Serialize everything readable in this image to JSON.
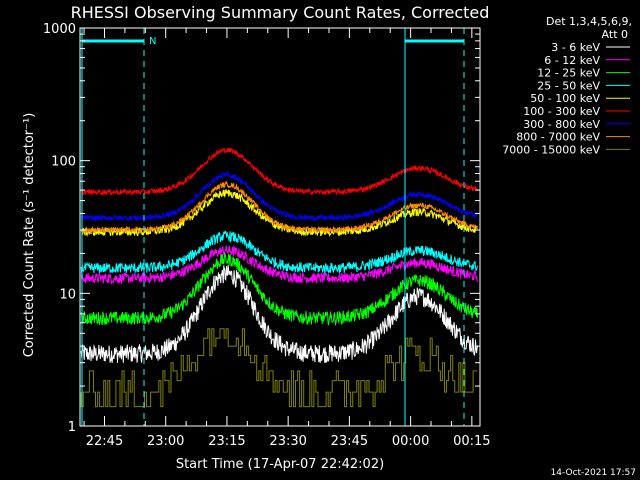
{
  "chart_data": {
    "type": "line",
    "title": "RHESSI Observing Summary Count Rates, Corrected",
    "ylabel": "Corrected Count Rate (s⁻¹ detector⁻¹)",
    "xlabel": "Start Time (17-Apr-07 22:42:02)",
    "yscale": "log",
    "ylim": [
      1,
      1000
    ],
    "xlim_minutes": [
      -3,
      95
    ],
    "x_ticks": [
      {
        "t": 3,
        "label": "22:45"
      },
      {
        "t": 18,
        "label": "23:00"
      },
      {
        "t": 33,
        "label": "23:15"
      },
      {
        "t": 48,
        "label": "23:30"
      },
      {
        "t": 63,
        "label": "23:45"
      },
      {
        "t": 78,
        "label": "00:00"
      },
      {
        "t": 93,
        "label": "00:15"
      }
    ],
    "y_ticks": [
      {
        "v": 1,
        "label": "1"
      },
      {
        "v": 10,
        "label": "10"
      },
      {
        "v": 100,
        "label": "100"
      },
      {
        "v": 1000,
        "label": "1000"
      }
    ],
    "annotations": {
      "detectors": "Det 1,3,4,5,6,9,",
      "attenuator": "Att 0",
      "night_marker": "N",
      "timestamp": "14-Oct-2021 17:57"
    },
    "series": [
      {
        "name": "3 - 6 keV",
        "color": "#ffffff",
        "base": 3.5,
        "peak1": 14,
        "peak2": 9.5,
        "noise": 0.07
      },
      {
        "name": "6 - 12 keV",
        "color": "#ff00ff",
        "base": 13,
        "peak1": 21,
        "peak2": 17,
        "noise": 0.04
      },
      {
        "name": "12 - 25 keV",
        "color": "#00ff00",
        "base": 6.5,
        "peak1": 18,
        "peak2": 12.5,
        "noise": 0.05
      },
      {
        "name": "25 - 50 keV",
        "color": "#00ffff",
        "base": 15.5,
        "peak1": 27,
        "peak2": 21,
        "noise": 0.04
      },
      {
        "name": "50 - 100 keV",
        "color": "#ffff00",
        "base": 29,
        "peak1": 57,
        "peak2": 41,
        "noise": 0.03
      },
      {
        "name": "100 - 300 keV",
        "color": "#ff0000",
        "base": 58,
        "peak1": 120,
        "peak2": 88,
        "noise": 0.02
      },
      {
        "name": "300 - 800 keV",
        "color": "#0000ff",
        "base": 37,
        "peak1": 78,
        "peak2": 56,
        "noise": 0.02
      },
      {
        "name": "800 - 7000 keV",
        "color": "#ff8c00",
        "base": 30,
        "peak1": 66,
        "peak2": 46,
        "noise": 0.02
      },
      {
        "name": "7000 - 15000 keV",
        "color": "#808000",
        "base": 1.8,
        "peak1": 5.5,
        "peak2": 3.5,
        "noise": 0.0
      }
    ]
  }
}
